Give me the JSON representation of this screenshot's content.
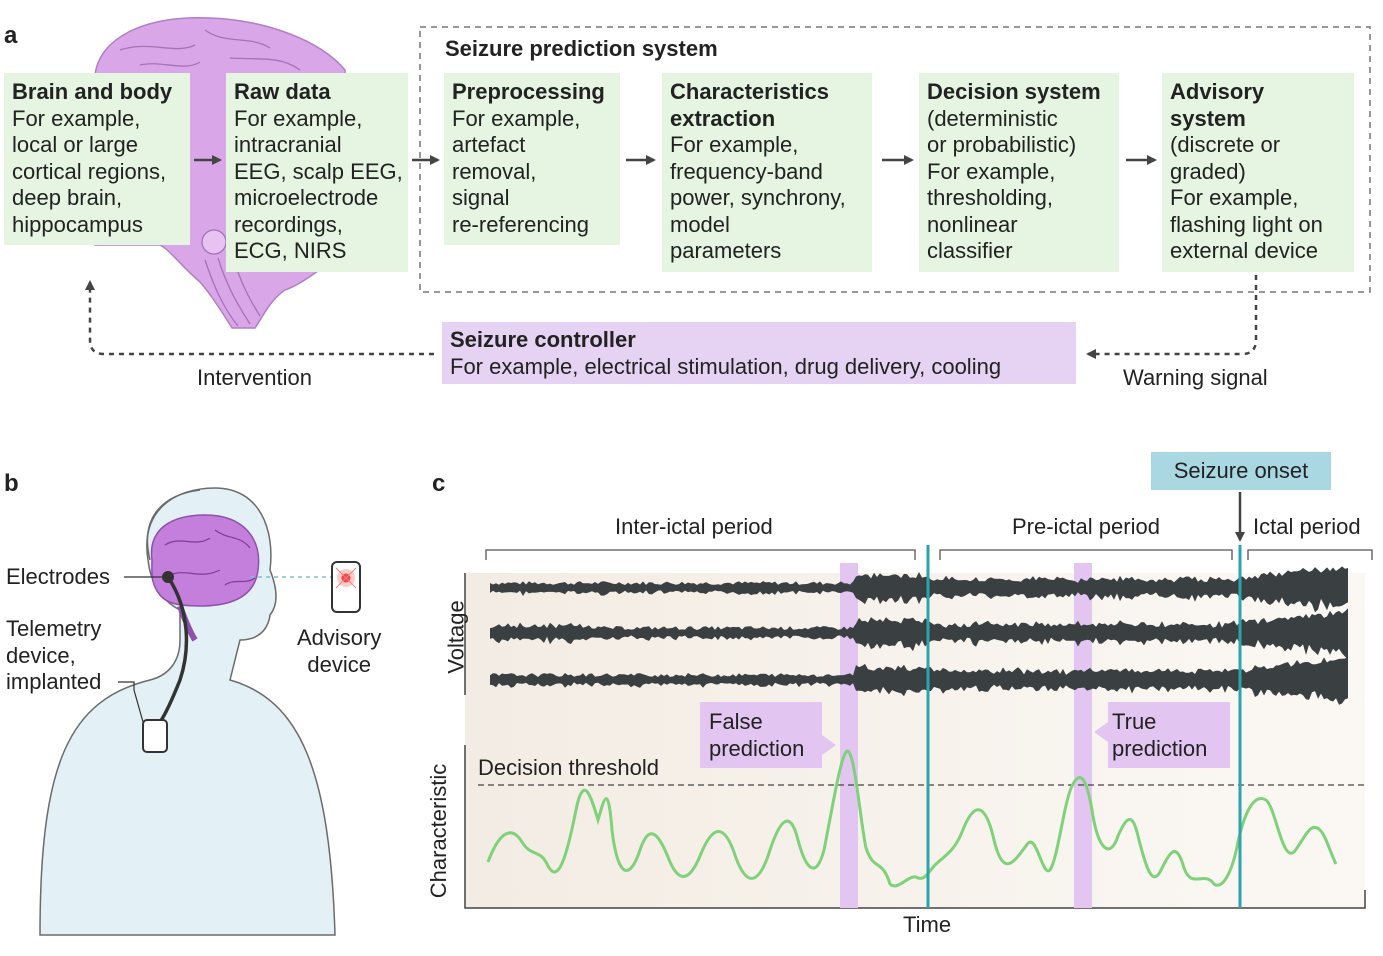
{
  "panel_a": {
    "letter": "a",
    "system_title": "Seizure prediction system",
    "boxes": [
      {
        "title": [
          "Brain and body"
        ],
        "body": [
          "For example,",
          "local or large",
          "cortical regions,",
          "deep brain,",
          "hippocampus"
        ]
      },
      {
        "title": [
          "Raw data"
        ],
        "body": [
          "For example,",
          "intracranial",
          "EEG, scalp EEG,",
          "microelectrode",
          "recordings,",
          "ECG, NIRS"
        ]
      },
      {
        "title": [
          "Preprocessing"
        ],
        "body": [
          "For example,",
          "artefact",
          "removal,",
          "signal",
          "re-referencing"
        ]
      },
      {
        "title": [
          "Characteristics",
          "extraction"
        ],
        "body": [
          "For example,",
          "frequency-band",
          "power, synchrony,",
          "model",
          "parameters"
        ]
      },
      {
        "title": [
          "Decision system"
        ],
        "body": [
          "(deterministic",
          "or probabilistic)",
          "For example,",
          "thresholding,",
          "nonlinear",
          "classifier"
        ]
      },
      {
        "title": [
          "Advisory",
          "system"
        ],
        "body": [
          "(discrete or",
          "graded)",
          "For example,",
          "flashing light on",
          "external device"
        ]
      }
    ],
    "controller": {
      "title": "Seizure controller",
      "body": "For example, electrical stimulation, drug delivery, cooling"
    },
    "intervention_label": "Intervention",
    "warning_label": "Warning signal"
  },
  "panel_b": {
    "letter": "b",
    "electrodes_label": "Electrodes",
    "telemetry_label": [
      "Telemetry",
      "device,",
      "implanted"
    ],
    "advisory_label": [
      "Advisory",
      "device"
    ]
  },
  "panel_c": {
    "letter": "c",
    "onset_label": "Seizure onset",
    "periods": [
      "Inter-ictal period",
      "Pre-ictal period",
      "Ictal period"
    ],
    "voltage_label": "Voltage",
    "characteristic_label": "Characteristic",
    "time_label": "Time",
    "threshold_label": "Decision threshold",
    "false_prediction": [
      "False",
      "prediction"
    ],
    "true_prediction": [
      "True",
      "prediction"
    ]
  },
  "colors": {
    "box_green": "#e6f4e2",
    "controller_purple": "#e6d2f3",
    "brain_purple": "#d9a6e8",
    "signal_green": "#7fd17a",
    "onset_blue": "#a9d8e3",
    "line_teal": "#2aa5ad",
    "body_blue": "#e3f1f6"
  },
  "chart_data": {
    "type": "line",
    "xlabel": "Time",
    "ylabel": "Characteristic",
    "annotations": [
      "Decision threshold",
      "False prediction",
      "True prediction",
      "Seizure onset"
    ]
  }
}
